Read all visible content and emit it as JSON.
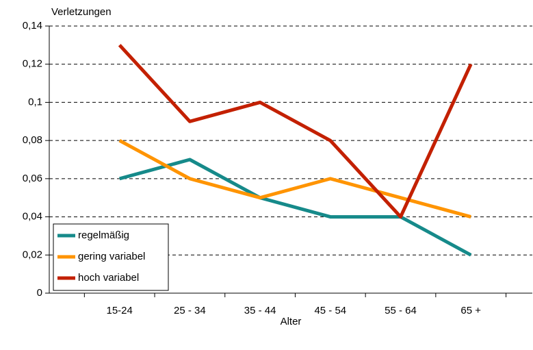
{
  "chart_data": {
    "type": "line",
    "ylabel": "Verletzungen",
    "xlabel": "Alter",
    "categories": [
      "15-24",
      "25 - 34",
      "35 - 44",
      "45 - 54",
      "55 - 64",
      "65 +"
    ],
    "series": [
      {
        "name": "regelmäßig",
        "color": "#168a8a",
        "values": [
          0.06,
          0.07,
          0.05,
          0.04,
          0.04,
          0.02
        ]
      },
      {
        "name": "gering variabel",
        "color": "#ff9400",
        "values": [
          0.08,
          0.06,
          0.05,
          0.06,
          0.05,
          0.04
        ]
      },
      {
        "name": "hoch variabel",
        "color": "#c32000",
        "values": [
          0.13,
          0.09,
          0.1,
          0.08,
          0.04,
          0.12
        ]
      }
    ],
    "ylim": [
      0,
      0.14
    ],
    "yticks": [
      0,
      {
        "value": 0.02,
        "label": "0,02"
      },
      {
        "value": 0.04,
        "label": "0,04"
      },
      {
        "value": 0.06,
        "label": "0,06"
      },
      {
        "value": 0.08,
        "label": "0,08"
      },
      {
        "value": 0.1,
        "label": "0,1"
      },
      {
        "value": 0.12,
        "label": "0,12"
      },
      {
        "value": 0.14,
        "label": "0,14"
      }
    ],
    "grid": true,
    "legend": "lower left"
  }
}
